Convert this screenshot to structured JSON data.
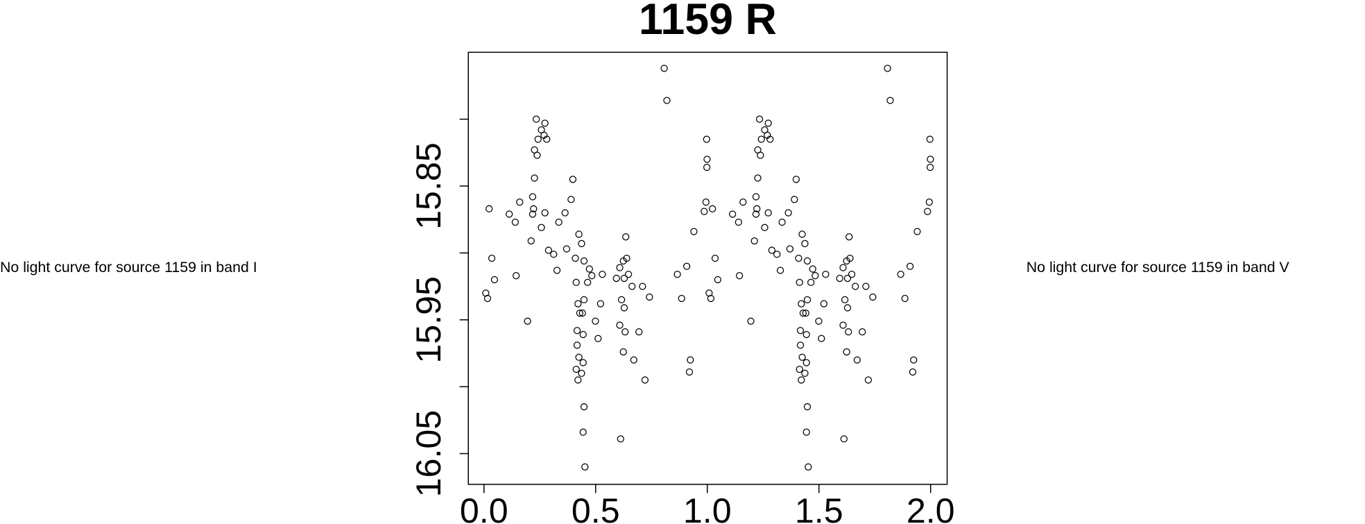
{
  "chart_data": {
    "type": "scatter",
    "title": "1159 R",
    "annotations": [
      "No light curve for source 1159 in band I",
      "No light curve for source 1159 in band V"
    ],
    "xlim": [
      -0.07,
      2.074
    ],
    "ylim": [
      16.073,
      15.75
    ],
    "xticks": [
      {
        "value": 0,
        "label": "0.0"
      },
      {
        "value": 0.5,
        "label": "0.5"
      },
      {
        "value": 1,
        "label": "1.0"
      },
      {
        "value": 1.5,
        "label": "1.5"
      },
      {
        "value": 2,
        "label": "2.0"
      }
    ],
    "yticks": [
      15.85,
      15.95,
      16.05
    ],
    "yminorticks": [
      15.8,
      15.9,
      16.0
    ],
    "color": "#000000",
    "x": [
      0.008,
      0.016,
      0.023,
      0.035,
      0.047,
      0.113,
      0.14,
      0.144,
      0.16,
      0.195,
      0.211,
      0.218,
      0.226,
      0.218,
      0.222,
      0.226,
      0.238,
      0.242,
      0.234,
      0.257,
      0.269,
      0.273,
      0.281,
      0.257,
      0.273,
      0.289,
      0.312,
      0.327,
      0.335,
      0.363,
      0.37,
      0.39,
      0.398,
      0.409,
      0.413,
      0.425,
      0.437,
      0.421,
      0.429,
      0.417,
      0.417,
      0.425,
      0.413,
      0.421,
      0.437,
      0.444,
      0.444,
      0.441,
      0.448,
      0.448,
      0.472,
      0.464,
      0.483,
      0.499,
      0.511,
      0.522,
      0.53,
      0.448,
      0.444,
      0.452,
      0.593,
      0.608,
      0.624,
      0.639,
      0.635,
      0.628,
      0.616,
      0.628,
      0.608,
      0.632,
      0.624,
      0.647,
      0.663,
      0.671,
      0.694,
      0.71,
      0.741,
      0.721,
      0.612,
      0.807,
      0.819,
      0.866,
      0.885,
      0.908,
      0.92,
      0.924,
      0.94,
      0.986,
      0.994,
      0.998,
      0.999,
      0.997,
      1.008,
      1.016,
      1.023,
      1.035,
      1.047,
      1.113,
      1.14,
      1.144,
      1.16,
      1.195,
      1.211,
      1.218,
      1.226,
      1.218,
      1.222,
      1.226,
      1.238,
      1.242,
      1.234,
      1.257,
      1.269,
      1.273,
      1.281,
      1.257,
      1.273,
      1.289,
      1.312,
      1.327,
      1.335,
      1.363,
      1.37,
      1.39,
      1.398,
      1.409,
      1.413,
      1.425,
      1.437,
      1.421,
      1.429,
      1.417,
      1.417,
      1.425,
      1.413,
      1.421,
      1.437,
      1.444,
      1.444,
      1.441,
      1.448,
      1.448,
      1.472,
      1.464,
      1.483,
      1.499,
      1.511,
      1.522,
      1.53,
      1.448,
      1.444,
      1.452,
      1.593,
      1.608,
      1.624,
      1.639,
      1.635,
      1.628,
      1.616,
      1.628,
      1.608,
      1.632,
      1.624,
      1.647,
      1.663,
      1.671,
      1.694,
      1.71,
      1.741,
      1.721,
      1.612,
      1.807,
      1.819,
      1.866,
      1.885,
      1.908,
      1.92,
      1.924,
      1.94,
      1.986,
      1.994,
      1.998,
      1.999,
      1.997
    ],
    "values": [
      15.93,
      15.934,
      15.867,
      15.904,
      15.92,
      15.871,
      15.877,
      15.917,
      15.862,
      15.951,
      15.891,
      15.871,
      15.844,
      15.858,
      15.867,
      15.823,
      15.827,
      15.815,
      15.8,
      15.808,
      15.812,
      15.803,
      15.815,
      15.881,
      15.87,
      15.898,
      15.901,
      15.913,
      15.877,
      15.87,
      15.897,
      15.86,
      15.845,
      15.904,
      15.922,
      15.886,
      15.893,
      15.938,
      15.945,
      15.958,
      15.969,
      15.978,
      15.987,
      15.995,
      15.99,
      15.982,
      15.961,
      15.945,
      15.935,
      15.906,
      15.912,
      15.922,
      15.917,
      15.951,
      15.964,
      15.938,
      15.916,
      16.015,
      16.034,
      16.06,
      15.919,
      15.911,
      15.906,
      15.904,
      15.888,
      15.919,
      15.935,
      15.941,
      15.954,
      15.959,
      15.974,
      15.916,
      15.925,
      15.98,
      15.959,
      15.925,
      15.933,
      15.995,
      16.039,
      15.762,
      15.786,
      15.916,
      15.934,
      15.91,
      15.989,
      15.98,
      15.884,
      15.869,
      15.862,
      15.836,
      15.83,
      15.815,
      15.93,
      15.934,
      15.867,
      15.904,
      15.92,
      15.871,
      15.877,
      15.917,
      15.862,
      15.951,
      15.891,
      15.871,
      15.844,
      15.858,
      15.867,
      15.823,
      15.827,
      15.815,
      15.8,
      15.808,
      15.812,
      15.803,
      15.815,
      15.881,
      15.87,
      15.898,
      15.901,
      15.913,
      15.877,
      15.87,
      15.897,
      15.86,
      15.845,
      15.904,
      15.922,
      15.886,
      15.893,
      15.938,
      15.945,
      15.958,
      15.969,
      15.978,
      15.987,
      15.995,
      15.99,
      15.982,
      15.961,
      15.945,
      15.935,
      15.906,
      15.912,
      15.922,
      15.917,
      15.951,
      15.964,
      15.938,
      15.916,
      16.015,
      16.034,
      16.06,
      15.919,
      15.911,
      15.906,
      15.904,
      15.888,
      15.919,
      15.935,
      15.941,
      15.954,
      15.959,
      15.974,
      15.916,
      15.925,
      15.98,
      15.959,
      15.925,
      15.933,
      15.995,
      16.039,
      15.762,
      15.786,
      15.916,
      15.934,
      15.91,
      15.989,
      15.98,
      15.884,
      15.869,
      15.862,
      15.836,
      15.83,
      15.815
    ]
  }
}
